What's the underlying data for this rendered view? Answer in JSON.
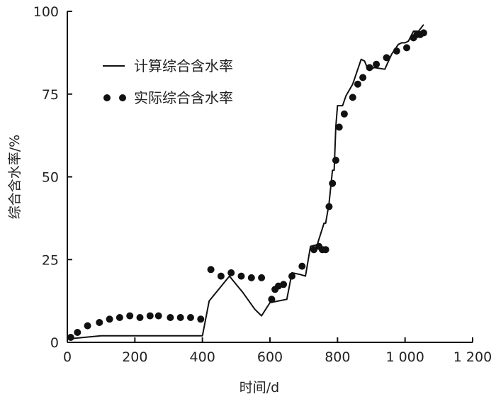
{
  "chart_data": {
    "type": "line",
    "xlabel": "时间/d",
    "ylabel": "综合含水率/%",
    "xlim": [
      0,
      1200
    ],
    "ylim": [
      0,
      100
    ],
    "x_ticks": [
      0,
      200,
      400,
      600,
      800,
      1000,
      1200
    ],
    "x_tick_labels": [
      "0",
      "200",
      "400",
      "600",
      "800",
      "1 000",
      "1 200"
    ],
    "y_ticks": [
      0,
      25,
      50,
      75,
      100
    ],
    "y_tick_labels": [
      "0",
      "25",
      "50",
      "75",
      "100"
    ],
    "grid": false,
    "legend_position": "top-left",
    "series": [
      {
        "name": "计算综合含水率",
        "style": "line",
        "color": "#111111",
        "x": [
          0,
          100,
          400,
          420,
          480,
          520,
          555,
          575,
          600,
          625,
          650,
          665,
          690,
          705,
          720,
          740,
          760,
          765,
          775,
          785,
          790,
          795,
          800,
          805,
          815,
          825,
          845,
          870,
          880,
          890,
          910,
          940,
          960,
          980,
          990,
          1000,
          1010,
          1025,
          1030,
          1040,
          1055
        ],
        "y": [
          1,
          2,
          2,
          12.5,
          20,
          15,
          10,
          8,
          12,
          12.5,
          13,
          21,
          20.5,
          20,
          29,
          29.5,
          36,
          36,
          42,
          52,
          52,
          65,
          71.5,
          71.5,
          71.5,
          74.5,
          78,
          85.5,
          85,
          82.5,
          83,
          82.5,
          87,
          90,
          90.5,
          90.5,
          91,
          94,
          94,
          94,
          96
        ]
      },
      {
        "name": "实际综合含水率",
        "style": "markers",
        "color": "#111111",
        "x": [
          10,
          30,
          60,
          95,
          125,
          155,
          185,
          215,
          245,
          270,
          305,
          335,
          365,
          395,
          425,
          455,
          485,
          515,
          545,
          575,
          605,
          615,
          625,
          640,
          665,
          695,
          730,
          745,
          755,
          765,
          775,
          785,
          795,
          805,
          820,
          845,
          860,
          875,
          895,
          915,
          945,
          975,
          1005,
          1025,
          1035,
          1045,
          1055
        ],
        "y": [
          1.5,
          3,
          5,
          6,
          7,
          7.5,
          8,
          7.5,
          8,
          8,
          7.5,
          7.5,
          7.5,
          7,
          22,
          20,
          21,
          20,
          19.5,
          19.5,
          13,
          16,
          17,
          17.5,
          20,
          23,
          28,
          29,
          28,
          28,
          41,
          48,
          55,
          65,
          69,
          74,
          78,
          80,
          83,
          84,
          86,
          88,
          89,
          92,
          93,
          93,
          93.5
        ]
      }
    ]
  }
}
